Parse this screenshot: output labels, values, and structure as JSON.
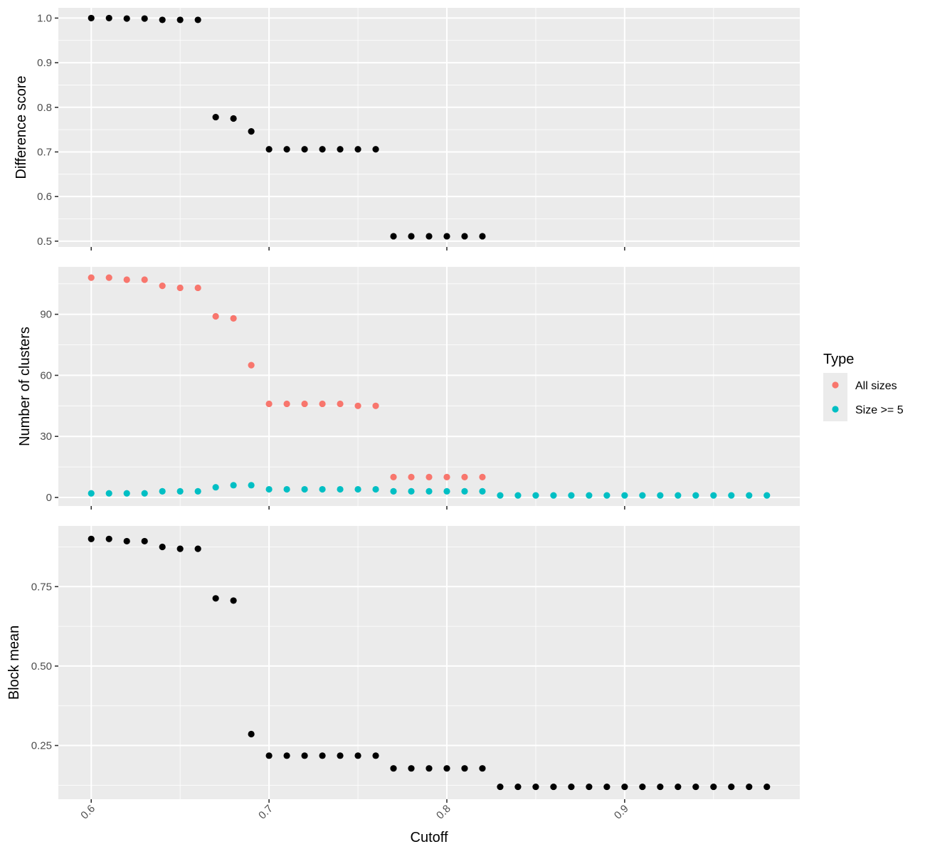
{
  "chart_data": {
    "type": "scatter",
    "x_axis": {
      "label": "Cutoff",
      "ticks": [
        0.6,
        0.7,
        0.8,
        0.9
      ],
      "tick_labels": [
        "0.6",
        "0.7",
        "0.8",
        "0.9"
      ],
      "minor_ticks": [
        0.65,
        0.75,
        0.85,
        0.95
      ],
      "range": [
        0.5815,
        0.9985
      ]
    },
    "legend": {
      "title": "Type",
      "position": "right",
      "entries": [
        {
          "label": "All sizes",
          "color": "#F8766D"
        },
        {
          "label": "Size >= 5",
          "color": "#00BFC4"
        }
      ]
    },
    "panels": [
      {
        "ylabel": "Difference score",
        "ylim": [
          0.487,
          1.023
        ],
        "yticks": [
          0.5,
          0.6,
          0.7,
          0.8,
          0.9,
          1.0
        ],
        "ytick_labels": [
          "0.5",
          "0.6",
          "0.7",
          "0.8",
          "0.9",
          "1.0"
        ],
        "yminor": [
          0.55,
          0.65,
          0.75,
          0.85,
          0.95
        ],
        "series": [
          {
            "color": "#000000",
            "x": [
              0.6,
              0.61,
              0.62,
              0.63,
              0.64,
              0.65,
              0.66,
              0.67,
              0.68,
              0.69,
              0.7,
              0.71,
              0.72,
              0.73,
              0.74,
              0.75,
              0.76,
              0.77,
              0.78,
              0.79,
              0.8,
              0.81,
              0.82
            ],
            "y": [
              1.0,
              1.0,
              0.999,
              0.999,
              0.996,
              0.996,
              0.996,
              0.778,
              0.775,
              0.746,
              0.706,
              0.706,
              0.706,
              0.706,
              0.706,
              0.706,
              0.706,
              0.511,
              0.511,
              0.511,
              0.511,
              0.511,
              0.511
            ]
          }
        ]
      },
      {
        "ylabel": "Number of clusters",
        "ylim": [
          -4.2,
          113.3
        ],
        "yticks": [
          0,
          30,
          60,
          90
        ],
        "ytick_labels": [
          "0",
          "30",
          "60",
          "90"
        ],
        "yminor": [
          15,
          45,
          75,
          105
        ],
        "series": [
          {
            "name": "All sizes",
            "color": "#F8766D",
            "x": [
              0.6,
              0.61,
              0.62,
              0.63,
              0.64,
              0.65,
              0.66,
              0.67,
              0.68,
              0.69,
              0.7,
              0.71,
              0.72,
              0.73,
              0.74,
              0.75,
              0.76,
              0.77,
              0.78,
              0.79,
              0.8,
              0.81,
              0.82
            ],
            "y": [
              108,
              108,
              107,
              107,
              104,
              103,
              103,
              89,
              88,
              65,
              46,
              46,
              46,
              46,
              46,
              45,
              45,
              10,
              10,
              10,
              10,
              10,
              10
            ]
          },
          {
            "name": "Size >= 5",
            "color": "#00BFC4",
            "x": [
              0.6,
              0.61,
              0.62,
              0.63,
              0.64,
              0.65,
              0.66,
              0.67,
              0.68,
              0.69,
              0.7,
              0.71,
              0.72,
              0.73,
              0.74,
              0.75,
              0.76,
              0.77,
              0.78,
              0.79,
              0.8,
              0.81,
              0.82,
              0.83,
              0.84,
              0.85,
              0.86,
              0.87,
              0.88,
              0.89,
              0.9,
              0.91,
              0.92,
              0.93,
              0.94,
              0.95,
              0.96,
              0.97,
              0.98
            ],
            "y": [
              2,
              2,
              2,
              2,
              3,
              3,
              3,
              5,
              6,
              6,
              4,
              4,
              4,
              4,
              4,
              4,
              4,
              3,
              3,
              3,
              3,
              3,
              3,
              1,
              1,
              1,
              1,
              1,
              1,
              1,
              1,
              1,
              1,
              1,
              1,
              1,
              1,
              1,
              1
            ]
          }
        ]
      },
      {
        "ylabel": "Block mean",
        "ylim": [
          0.081,
          0.941
        ],
        "yticks": [
          0.25,
          0.5,
          0.75
        ],
        "ytick_labels": [
          "0.25",
          "0.50",
          "0.75"
        ],
        "yminor": [
          0.125,
          0.375,
          0.625,
          0.875
        ],
        "series": [
          {
            "color": "#000000",
            "x": [
              0.6,
              0.61,
              0.62,
              0.63,
              0.64,
              0.65,
              0.66,
              0.67,
              0.68,
              0.69,
              0.7,
              0.71,
              0.72,
              0.73,
              0.74,
              0.75,
              0.76,
              0.77,
              0.78,
              0.79,
              0.8,
              0.81,
              0.82,
              0.83,
              0.84,
              0.85,
              0.86,
              0.87,
              0.88,
              0.89,
              0.9,
              0.91,
              0.92,
              0.93,
              0.94,
              0.95,
              0.96,
              0.97,
              0.98
            ],
            "y": [
              0.9,
              0.9,
              0.893,
              0.893,
              0.875,
              0.869,
              0.869,
              0.713,
              0.706,
              0.286,
              0.218,
              0.218,
              0.218,
              0.218,
              0.218,
              0.218,
              0.218,
              0.178,
              0.178,
              0.178,
              0.178,
              0.178,
              0.178,
              0.12,
              0.12,
              0.12,
              0.12,
              0.12,
              0.12,
              0.12,
              0.12,
              0.12,
              0.12,
              0.12,
              0.12,
              0.12,
              0.12,
              0.12,
              0.12
            ]
          }
        ]
      }
    ]
  }
}
